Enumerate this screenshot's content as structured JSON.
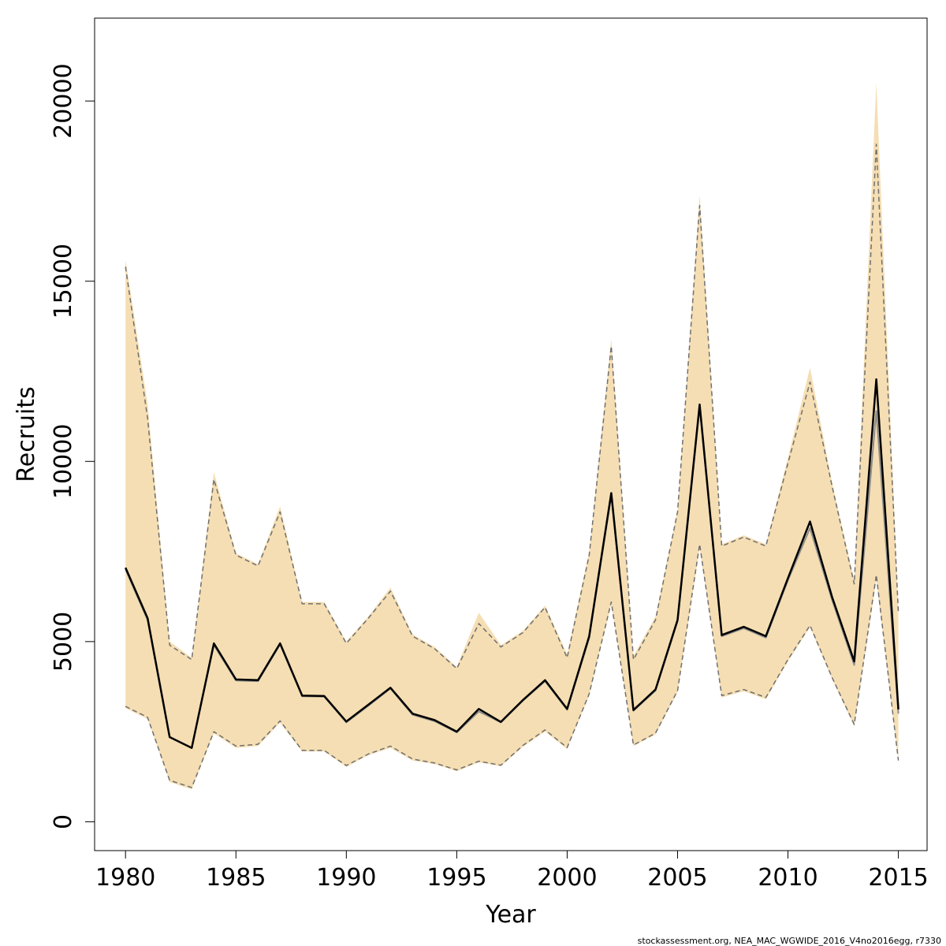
{
  "chart_data": {
    "type": "line",
    "title": "",
    "xlabel": "Year",
    "ylabel": "Recruits",
    "xlim": [
      1978.6,
      2016.3
    ],
    "ylim": [
      -800,
      22300
    ],
    "x_ticks": [
      1980,
      1985,
      1990,
      1995,
      2000,
      2005,
      2010,
      2015
    ],
    "y_ticks": [
      0,
      5000,
      10000,
      15000,
      20000
    ],
    "grid": false,
    "legend": "none",
    "x": [
      1980,
      1981,
      1982,
      1983,
      1984,
      1985,
      1986,
      1987,
      1988,
      1989,
      1990,
      1991,
      1992,
      1993,
      1994,
      1995,
      1996,
      1997,
      1998,
      1999,
      2000,
      2001,
      2002,
      2003,
      2004,
      2005,
      2006,
      2007,
      2008,
      2009,
      2010,
      2011,
      2012,
      2013,
      2014,
      2015
    ],
    "series": [
      {
        "role": "estimate",
        "values": [
          7050,
          5650,
          2350,
          2050,
          4950,
          3950,
          3930,
          4950,
          3500,
          3490,
          2780,
          3250,
          3720,
          3000,
          2820,
          2500,
          3130,
          2770,
          3380,
          3930,
          3130,
          5150,
          9120,
          3100,
          3670,
          5600,
          11580,
          5180,
          5410,
          5150,
          6760,
          8330,
          6230,
          4450,
          12280,
          3120
        ]
      },
      {
        "role": "estimate-alt",
        "values": [
          7000,
          5600,
          2350,
          2050,
          4900,
          3920,
          3900,
          4920,
          3480,
          3470,
          2760,
          3220,
          3700,
          2970,
          2790,
          2480,
          3060,
          2760,
          3360,
          3900,
          3110,
          5100,
          9050,
          3080,
          3640,
          5560,
          11500,
          5150,
          5370,
          5110,
          6700,
          8150,
          6150,
          4350,
          11400,
          3000
        ]
      },
      {
        "role": "upper-bound",
        "values": [
          15400,
          11200,
          4900,
          4500,
          9500,
          7400,
          7100,
          8600,
          6050,
          6050,
          4950,
          5650,
          6400,
          5150,
          4800,
          4250,
          5500,
          4850,
          5250,
          5950,
          4550,
          7400,
          13200,
          4500,
          5600,
          8600,
          17100,
          7650,
          7900,
          7650,
          9950,
          12200,
          9300,
          6600,
          18800,
          5800
        ]
      },
      {
        "role": "lower-bound",
        "values": [
          3200,
          2900,
          1150,
          950,
          2500,
          2100,
          2150,
          2800,
          1980,
          1980,
          1560,
          1880,
          2100,
          1740,
          1630,
          1440,
          1680,
          1570,
          2120,
          2550,
          2060,
          3550,
          6100,
          2130,
          2460,
          3640,
          7700,
          3500,
          3670,
          3450,
          4500,
          5450,
          4000,
          2700,
          6850,
          1700
        ]
      }
    ],
    "band": {
      "upper": [
        15600,
        11600,
        5000,
        4550,
        9700,
        7450,
        7150,
        8750,
        6100,
        6100,
        5000,
        5700,
        6500,
        5200,
        4850,
        4300,
        5800,
        4900,
        5300,
        6000,
        4650,
        7500,
        13400,
        4600,
        5700,
        8650,
        17400,
        7700,
        7950,
        7700,
        10100,
        12600,
        9400,
        6700,
        20500,
        5900
      ],
      "lower": [
        3150,
        2850,
        1100,
        900,
        2450,
        2050,
        2100,
        2750,
        1950,
        1950,
        1520,
        1850,
        2050,
        1700,
        1600,
        1400,
        1650,
        1540,
        2080,
        2500,
        2020,
        3500,
        6050,
        2100,
        2420,
        3600,
        7600,
        3450,
        3620,
        3400,
        4450,
        5400,
        3950,
        2650,
        6700,
        1650
      ],
      "color": "#f5deb3"
    },
    "colors": {
      "estimate": "#000000",
      "estimate_alt": "#8c8c8c",
      "bounds": "#707070"
    }
  },
  "footnote": "stockassessment.org, NEA_MAC_WGWIDE_2016_V4no2016egg, r7330"
}
